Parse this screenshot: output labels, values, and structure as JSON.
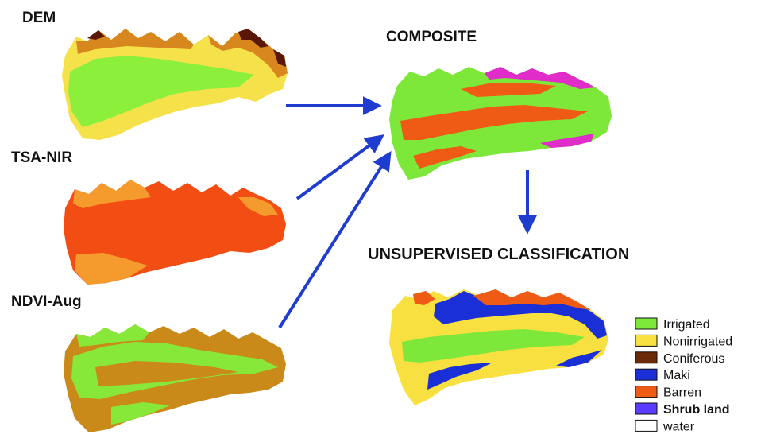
{
  "colors": {
    "irrigated": "#7ee83a",
    "nonirrigated": "#f7e040",
    "coniferous": "#6b2a08",
    "maki": "#1a2fd6",
    "barren": "#ef5a15",
    "shrub_land": "#5b3bff",
    "water": "#ffffff",
    "arrow": "#1e3ccf",
    "dem_low": "#8bef3c",
    "dem_mid": "#f5e24a",
    "dem_high": "#d8861e",
    "dem_peak": "#5a1606",
    "nir_base": "#f24d12",
    "nir_light": "#f59a2c",
    "ndvi_base": "#c98a1a",
    "ndvi_green": "#88e83a",
    "composite_magenta": "#e02cc8"
  },
  "panels": {
    "dem": {
      "label": "DEM"
    },
    "tsa_nir": {
      "label": "TSA-NIR"
    },
    "ndvi_aug": {
      "label": "NDVI-Aug"
    },
    "composite": {
      "label": "COMPOSITE"
    },
    "classification": {
      "label": "UNSUPERVISED CLASSIFICATION"
    }
  },
  "legend": {
    "items": [
      {
        "label": "Irrigated",
        "color_key": "irrigated",
        "bold": false
      },
      {
        "label": "Nonirrigated",
        "color_key": "nonirrigated",
        "bold": false
      },
      {
        "label": "Coniferous",
        "color_key": "coniferous",
        "bold": false
      },
      {
        "label": "Maki",
        "color_key": "maki",
        "bold": false
      },
      {
        "label": "Barren",
        "color_key": "barren",
        "bold": false
      },
      {
        "label": "Shrub land",
        "color_key": "shrub_land",
        "bold": true
      },
      {
        "label": "water",
        "color_key": "water",
        "bold": false
      }
    ]
  }
}
